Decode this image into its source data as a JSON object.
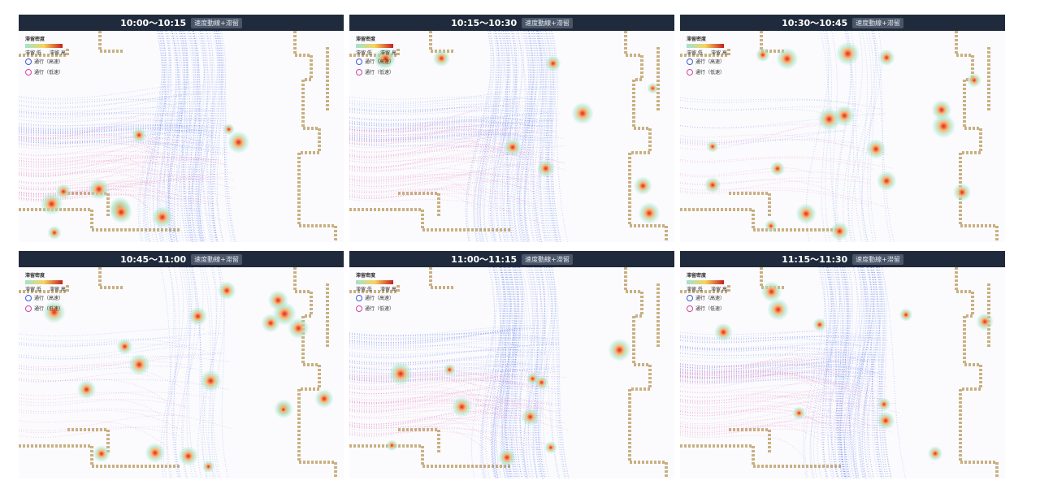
{
  "badge": "速度動線+滞留",
  "legend": {
    "title": "滞留密度",
    "low": "滞留 低",
    "high": "滞留 高",
    "fast": "通行（高速）",
    "slow": "通行（低速）"
  },
  "panels": [
    {
      "title": "10:00〜10:15"
    },
    {
      "title": "10:15〜10:30"
    },
    {
      "title": "10:30〜10:45"
    },
    {
      "title": "10:45〜11:00"
    },
    {
      "title": "11:00〜11:15"
    },
    {
      "title": "11:15〜11:30"
    }
  ]
}
